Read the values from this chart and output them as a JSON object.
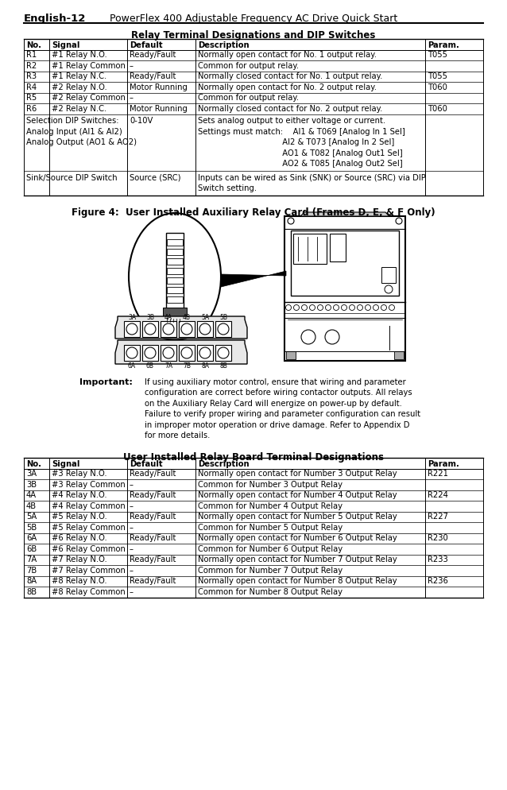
{
  "page_header_left": "English-12",
  "page_header_right": "PowerFlex 400 Adjustable Frequency AC Drive Quick Start",
  "table1_title": "Relay Terminal Designations and DIP Switches",
  "table1_headers": [
    "No.",
    "Signal",
    "Default",
    "Description",
    "Param."
  ],
  "table1_rows": [
    [
      "R1",
      "#1 Relay N.O.",
      "Ready/Fault",
      "Normally open contact for No. 1 output relay.",
      "T055"
    ],
    [
      "R2",
      "#1 Relay Common",
      "–",
      "Common for output relay.",
      ""
    ],
    [
      "R3",
      "#1 Relay N.C.",
      "Ready/Fault",
      "Normally closed contact for No. 1 output relay.",
      "T055"
    ],
    [
      "R4",
      "#2 Relay N.O.",
      "Motor Running",
      "Normally open contact for No. 2 output relay.",
      "T060"
    ],
    [
      "R5",
      "#2 Relay Common",
      "–",
      "Common for output relay.",
      ""
    ],
    [
      "R6",
      "#2 Relay N.C.",
      "Motor Running",
      "Normally closed contact for No. 2 output relay.",
      "T060"
    ]
  ],
  "dip1_col0": [
    "Selection DIP Switches:",
    "Analog Input (AI1 & AI2)",
    "Analog Output (AO1 & AO2)"
  ],
  "dip1_col1": [
    "0-10V"
  ],
  "dip1_col2": [
    "Sets analog output to either voltage or current.",
    "Settings must match:    AI1 & T069 [Analog In 1 Sel]",
    "                                  AI2 & T073 [Analog In 2 Sel]",
    "                                  AO1 & T082 [Analog Out1 Sel]",
    "                                  AO2 & T085 [Analog Out2 Sel]"
  ],
  "dip2_col0": [
    "Sink/Source DIP Switch"
  ],
  "dip2_col1": [
    "Source (SRC)"
  ],
  "dip2_col2": [
    "Inputs can be wired as Sink (SNK) or Source (SRC) via DIP",
    "Switch setting."
  ],
  "figure_title": "Figure 4:  User Installed Auxiliary Relay Card (Frames D, E, & F Only)",
  "important_bold": "Important:",
  "important_lines": [
    "If using auxiliary motor control, ensure that wiring and parameter",
    "configuration are correct before wiring contactor outputs. All relays",
    "on the Auxiliary Relay Card will energize on power-up by default.",
    "Failure to verify proper wiring and parameter configuration can result",
    "in improper motor operation or drive damage. Refer to Appendix D",
    "for more details."
  ],
  "table2_title": "User Installed Relay Board Terminal Designations",
  "table2_headers": [
    "No.",
    "Signal",
    "Default",
    "Description",
    "Param."
  ],
  "table2_rows": [
    [
      "3A",
      "#3 Relay N.O.",
      "Ready/Fault",
      "Normally open contact for Number 3 Output Relay",
      "R221"
    ],
    [
      "3B",
      "#3 Relay Common",
      "–",
      "Common for Number 3 Output Relay",
      ""
    ],
    [
      "4A",
      "#4 Relay N.O.",
      "Ready/Fault",
      "Normally open contact for Number 4 Output Relay",
      "R224"
    ],
    [
      "4B",
      "#4 Relay Common",
      "–",
      "Common for Number 4 Output Relay",
      ""
    ],
    [
      "5A",
      "#5 Relay N.O.",
      "Ready/Fault",
      "Normally open contact for Number 5 Output Relay",
      "R227"
    ],
    [
      "5B",
      "#5 Relay Common",
      "–",
      "Common for Number 5 Output Relay",
      ""
    ],
    [
      "6A",
      "#6 Relay N.O.",
      "Ready/Fault",
      "Normally open contact for Number 6 Output Relay",
      "R230"
    ],
    [
      "6B",
      "#6 Relay Common",
      "–",
      "Common for Number 6 Output Relay",
      ""
    ],
    [
      "7A",
      "#7 Relay N.O.",
      "Ready/Fault",
      "Normally open contact for Number 7 Output Relay",
      "R233"
    ],
    [
      "7B",
      "#7 Relay Common",
      "–",
      "Common for Number 7 Output Relay",
      ""
    ],
    [
      "8A",
      "#8 Relay N.O.",
      "Ready/Fault",
      "Normally open contact for Number 8 Output Relay",
      "R236"
    ],
    [
      "8B",
      "#8 Relay Common",
      "–",
      "Common for Number 8 Output Relay",
      ""
    ]
  ],
  "t1_cols": [
    30,
    62,
    160,
    246,
    535,
    608
  ],
  "t2_cols": [
    30,
    62,
    160,
    246,
    535,
    608
  ],
  "fs_body": 7.2,
  "fs_bold": 7.5,
  "fs_title": 8.0,
  "fs_hdr": 9.0,
  "lh": 13.5
}
